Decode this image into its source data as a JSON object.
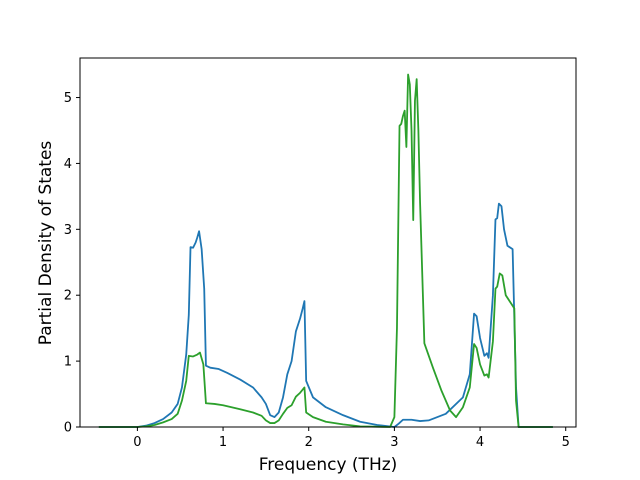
{
  "chart_data": {
    "type": "line",
    "title": "",
    "xlabel": "Frequency (THz)",
    "ylabel": "Partial Density of States",
    "xlim": [
      -0.67,
      5.12
    ],
    "ylim": [
      0,
      5.6
    ],
    "xticks": [
      0,
      1,
      2,
      3,
      4,
      5
    ],
    "yticks": [
      0,
      1,
      2,
      3,
      4,
      5
    ],
    "xtick_labels": [
      "0",
      "1",
      "2",
      "3",
      "4",
      "5"
    ],
    "ytick_labels": [
      "0",
      "1",
      "2",
      "3",
      "4",
      "5"
    ],
    "grid": false,
    "legend": "none",
    "series": [
      {
        "color": "#1f77b4",
        "points": [
          [
            -0.45,
            0
          ],
          [
            0.0,
            0
          ],
          [
            0.1,
            0.02
          ],
          [
            0.2,
            0.06
          ],
          [
            0.3,
            0.12
          ],
          [
            0.4,
            0.22
          ],
          [
            0.47,
            0.35
          ],
          [
            0.52,
            0.6
          ],
          [
            0.57,
            1.1
          ],
          [
            0.6,
            1.7
          ],
          [
            0.62,
            2.73
          ],
          [
            0.65,
            2.72
          ],
          [
            0.68,
            2.8
          ],
          [
            0.7,
            2.88
          ],
          [
            0.72,
            2.97
          ],
          [
            0.75,
            2.7
          ],
          [
            0.78,
            2.1
          ],
          [
            0.8,
            0.93
          ],
          [
            0.85,
            0.9
          ],
          [
            0.95,
            0.88
          ],
          [
            1.05,
            0.82
          ],
          [
            1.2,
            0.72
          ],
          [
            1.35,
            0.6
          ],
          [
            1.45,
            0.45
          ],
          [
            1.5,
            0.35
          ],
          [
            1.55,
            0.18
          ],
          [
            1.6,
            0.15
          ],
          [
            1.65,
            0.22
          ],
          [
            1.7,
            0.45
          ],
          [
            1.75,
            0.8
          ],
          [
            1.8,
            1.0
          ],
          [
            1.85,
            1.45
          ],
          [
            1.9,
            1.65
          ],
          [
            1.93,
            1.8
          ],
          [
            1.95,
            1.91
          ],
          [
            1.97,
            0.7
          ],
          [
            2.05,
            0.45
          ],
          [
            2.2,
            0.3
          ],
          [
            2.4,
            0.18
          ],
          [
            2.6,
            0.08
          ],
          [
            2.8,
            0.03
          ],
          [
            3.0,
            0.0
          ],
          [
            3.05,
            0.05
          ],
          [
            3.1,
            0.11
          ],
          [
            3.2,
            0.11
          ],
          [
            3.3,
            0.09
          ],
          [
            3.4,
            0.1
          ],
          [
            3.6,
            0.2
          ],
          [
            3.8,
            0.45
          ],
          [
            3.88,
            0.8
          ],
          [
            3.93,
            1.72
          ],
          [
            3.96,
            1.68
          ],
          [
            4.0,
            1.35
          ],
          [
            4.05,
            1.08
          ],
          [
            4.08,
            1.12
          ],
          [
            4.1,
            1.05
          ],
          [
            4.15,
            2.0
          ],
          [
            4.18,
            3.15
          ],
          [
            4.2,
            3.17
          ],
          [
            4.22,
            3.39
          ],
          [
            4.25,
            3.35
          ],
          [
            4.28,
            3.0
          ],
          [
            4.32,
            2.75
          ],
          [
            4.38,
            2.7
          ],
          [
            4.42,
            0.6
          ],
          [
            4.45,
            0
          ],
          [
            4.85,
            0
          ]
        ]
      },
      {
        "color": "#2ca02c",
        "points": [
          [
            -0.45,
            0
          ],
          [
            0.0,
            0
          ],
          [
            0.1,
            0.01
          ],
          [
            0.2,
            0.03
          ],
          [
            0.3,
            0.07
          ],
          [
            0.4,
            0.12
          ],
          [
            0.47,
            0.2
          ],
          [
            0.52,
            0.4
          ],
          [
            0.57,
            0.7
          ],
          [
            0.6,
            1.08
          ],
          [
            0.65,
            1.07
          ],
          [
            0.7,
            1.1
          ],
          [
            0.73,
            1.13
          ],
          [
            0.77,
            0.95
          ],
          [
            0.8,
            0.36
          ],
          [
            0.9,
            0.35
          ],
          [
            1.0,
            0.33
          ],
          [
            1.2,
            0.27
          ],
          [
            1.35,
            0.22
          ],
          [
            1.45,
            0.17
          ],
          [
            1.5,
            0.1
          ],
          [
            1.55,
            0.06
          ],
          [
            1.6,
            0.06
          ],
          [
            1.65,
            0.1
          ],
          [
            1.7,
            0.2
          ],
          [
            1.75,
            0.29
          ],
          [
            1.8,
            0.33
          ],
          [
            1.85,
            0.46
          ],
          [
            1.9,
            0.52
          ],
          [
            1.95,
            0.6
          ],
          [
            1.97,
            0.22
          ],
          [
            2.05,
            0.15
          ],
          [
            2.2,
            0.08
          ],
          [
            2.4,
            0.04
          ],
          [
            2.6,
            0.01
          ],
          [
            2.95,
            0
          ],
          [
            3.0,
            0.15
          ],
          [
            3.03,
            1.5
          ],
          [
            3.06,
            4.57
          ],
          [
            3.08,
            4.6
          ],
          [
            3.1,
            4.72
          ],
          [
            3.12,
            4.8
          ],
          [
            3.14,
            4.25
          ],
          [
            3.16,
            5.35
          ],
          [
            3.18,
            5.2
          ],
          [
            3.2,
            4.5
          ],
          [
            3.22,
            3.14
          ],
          [
            3.24,
            4.95
          ],
          [
            3.26,
            5.28
          ],
          [
            3.28,
            4.5
          ],
          [
            3.3,
            3.4
          ],
          [
            3.35,
            1.27
          ],
          [
            3.45,
            0.9
          ],
          [
            3.55,
            0.55
          ],
          [
            3.65,
            0.25
          ],
          [
            3.72,
            0.15
          ],
          [
            3.8,
            0.3
          ],
          [
            3.88,
            0.6
          ],
          [
            3.93,
            1.26
          ],
          [
            3.96,
            1.2
          ],
          [
            4.0,
            0.95
          ],
          [
            4.05,
            0.78
          ],
          [
            4.08,
            0.8
          ],
          [
            4.1,
            0.75
          ],
          [
            4.15,
            1.3
          ],
          [
            4.18,
            2.1
          ],
          [
            4.2,
            2.13
          ],
          [
            4.23,
            2.33
          ],
          [
            4.26,
            2.3
          ],
          [
            4.3,
            2.0
          ],
          [
            4.36,
            1.88
          ],
          [
            4.4,
            1.8
          ],
          [
            4.42,
            0.4
          ],
          [
            4.45,
            0
          ],
          [
            4.85,
            0
          ]
        ]
      }
    ]
  }
}
